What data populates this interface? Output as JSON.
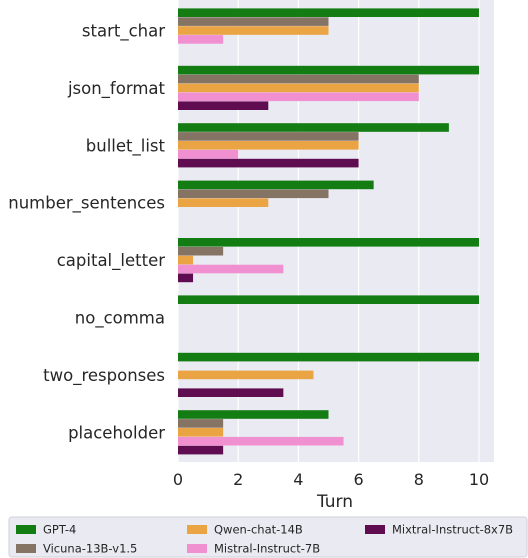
{
  "chart_data": {
    "type": "bar",
    "orientation": "horizontal",
    "categories": [
      "start_char",
      "json_format",
      "bullet_list",
      "number_sentences",
      "capital_letter",
      "no_comma",
      "two_responses",
      "placeholder"
    ],
    "series": [
      {
        "name": "GPT-4",
        "color": "#137d13",
        "values": [
          10,
          10,
          9,
          6.5,
          10,
          10,
          10,
          5
        ]
      },
      {
        "name": "Vicuna-13B-v1.5",
        "color": "#857364",
        "values": [
          5,
          8,
          6,
          5,
          1.5,
          0,
          0,
          1.5
        ]
      },
      {
        "name": "Qwen-chat-14B",
        "color": "#eba443",
        "values": [
          5,
          8,
          6,
          3,
          0.5,
          0,
          4.5,
          1.5
        ]
      },
      {
        "name": "Mistral-Instruct-7B",
        "color": "#f190d0",
        "values": [
          1.5,
          8,
          2,
          0,
          3.5,
          0,
          0,
          5.5
        ]
      },
      {
        "name": "Mixtral-Instruct-8x7B",
        "color": "#600c50",
        "values": [
          0,
          3,
          6,
          0,
          0.5,
          0,
          3.5,
          1.5
        ]
      }
    ],
    "xlabel": "Turn",
    "ylabel": "",
    "xlim": [
      0,
      10.5
    ],
    "xticks": [
      0,
      2,
      4,
      6,
      8,
      10
    ],
    "grid": true,
    "legend_position": "bottom"
  }
}
